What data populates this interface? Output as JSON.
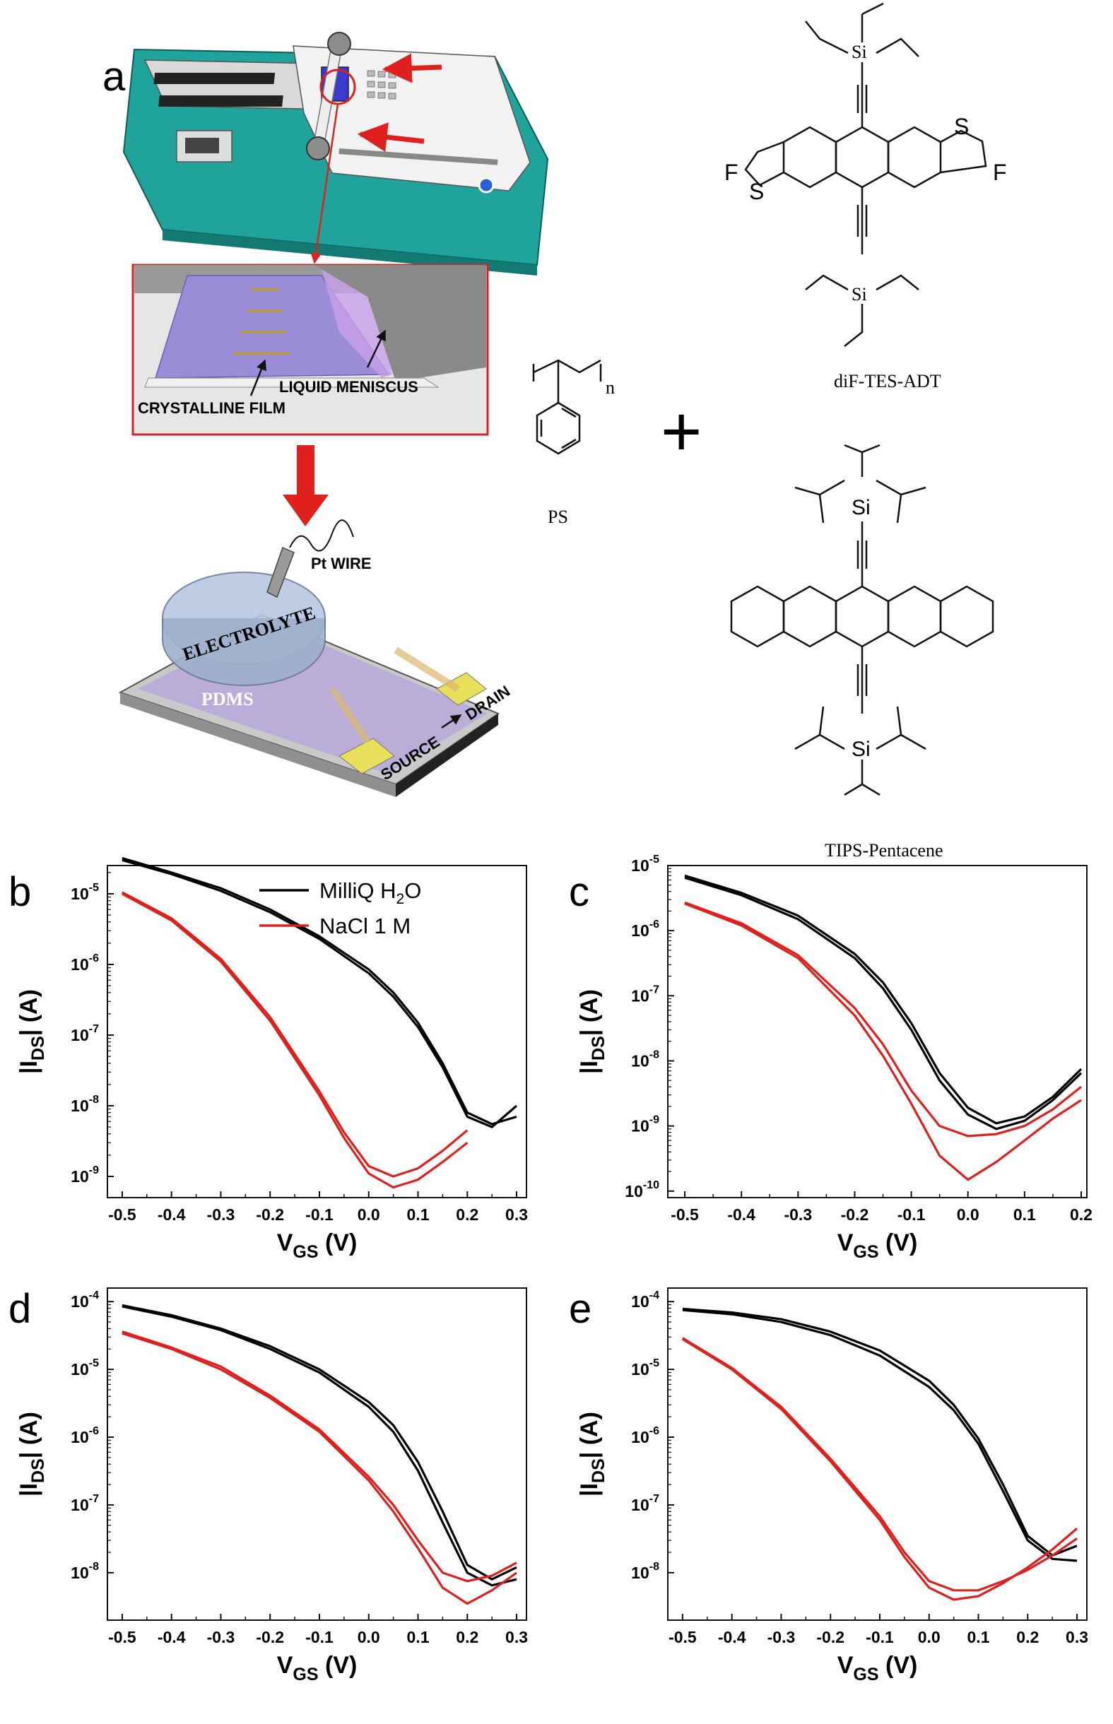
{
  "panel_letters": {
    "a": "a",
    "b": "b",
    "c": "c",
    "d": "d",
    "e": "e"
  },
  "illustration": {
    "labels": {
      "liquid_meniscus": "LIQUID MENISCUS",
      "crystalline_film": "CRYSTALLINE FILM",
      "pt_wire": "Pt WIRE",
      "electrolyte": "ELECTROLYTE",
      "pdms": "PDMS",
      "source": "SOURCE",
      "drain": "DRAIN"
    },
    "molecules": {
      "difTesAdt": "diF-TES-ADT",
      "tipsPentacene": "TIPS-Pentacene",
      "ps": "PS",
      "plus": "+",
      "si": "Si",
      "f": "F",
      "s": "S",
      "n": "n"
    }
  },
  "colors": {
    "water": "#000000",
    "nacl": "#e0201c",
    "teal": "#1fa39b",
    "film": "#9a8cd6",
    "gold": "#e8e05a"
  },
  "chart_data": [
    {
      "panel": "b",
      "type": "line",
      "yscale": "log",
      "xlabel": "V",
      "xlabel_sub": "GS",
      "xlabel_unit": " (V)",
      "ylabel_pre": "|I",
      "ylabel_sub": "DS",
      "ylabel_post": "| (A)",
      "xlim": [
        -0.53,
        0.32
      ],
      "ylim_exp": [
        -9.3,
        -4.6
      ],
      "xticks": [
        -0.5,
        -0.4,
        -0.3,
        -0.2,
        -0.1,
        0.0,
        0.1,
        0.2,
        0.3
      ],
      "xtick_labels": [
        "-0.5",
        "-0.4",
        "-0.3",
        "-0.2",
        "-0.1",
        "0.0",
        "0.1",
        "0.2",
        "0.3"
      ],
      "yticks_exp": [
        -9,
        -8,
        -7,
        -6,
        -5
      ],
      "ytick_labels": [
        {
          "base": "10",
          "exp": "-9"
        },
        {
          "base": "10",
          "exp": "-8"
        },
        {
          "base": "10",
          "exp": "-7"
        },
        {
          "base": "10",
          "exp": "-6"
        },
        {
          "base": "10",
          "exp": "-5"
        }
      ],
      "legend": [
        {
          "name": "MilliQ H",
          "sub": "2",
          "tail": "O",
          "color": "#000000"
        },
        {
          "name": "NaCl 1 M",
          "sub": "",
          "tail": "",
          "color": "#e0201c"
        }
      ],
      "series": [
        {
          "name": "MilliQ H2O",
          "color": "#000000",
          "x": [
            -0.5,
            -0.4,
            -0.3,
            -0.2,
            -0.1,
            0.0,
            0.05,
            0.1,
            0.15,
            0.2,
            0.25,
            0.3
          ],
          "y": [
            3e-05,
            1.9e-05,
            1.1e-05,
            5.5e-06,
            2.3e-06,
            7.5e-07,
            3.5e-07,
            1.3e-07,
            3.5e-08,
            7e-09,
            5e-09,
            1e-08
          ]
        },
        {
          "name": "MilliQ H2O",
          "color": "#000000",
          "x": [
            -0.5,
            -0.4,
            -0.3,
            -0.2,
            -0.1,
            0.0,
            0.05,
            0.1,
            0.15,
            0.2,
            0.25,
            0.3
          ],
          "y": [
            3.2e-05,
            2e-05,
            1.2e-05,
            6e-06,
            2.5e-06,
            8.5e-07,
            4e-07,
            1.5e-07,
            4e-08,
            8e-09,
            5.5e-09,
            7e-09
          ]
        },
        {
          "name": "NaCl 1 M",
          "color": "#e0201c",
          "x": [
            -0.5,
            -0.4,
            -0.3,
            -0.2,
            -0.1,
            -0.05,
            0.0,
            0.05,
            0.1,
            0.15,
            0.2
          ],
          "y": [
            1e-05,
            4.2e-06,
            1.1e-06,
            1.6e-07,
            1.4e-08,
            3.5e-09,
            1.1e-09,
            7e-10,
            9e-10,
            1.6e-09,
            3e-09
          ]
        },
        {
          "name": "NaCl 1 M",
          "color": "#e0201c",
          "x": [
            -0.5,
            -0.4,
            -0.3,
            -0.2,
            -0.1,
            -0.05,
            0.0,
            0.05,
            0.1,
            0.15,
            0.2
          ],
          "y": [
            1.05e-05,
            4.5e-06,
            1.2e-06,
            1.8e-07,
            1.6e-08,
            4.2e-09,
            1.4e-09,
            1e-09,
            1.3e-09,
            2.3e-09,
            4.5e-09
          ]
        }
      ]
    },
    {
      "panel": "c",
      "type": "line",
      "yscale": "log",
      "xlabel": "V",
      "xlabel_sub": "GS",
      "xlabel_unit": " (V)",
      "ylabel_pre": "|I",
      "ylabel_sub": "DS",
      "ylabel_post": "| (A)",
      "xlim": [
        -0.53,
        0.21
      ],
      "ylim_exp": [
        -10.1,
        -5.0
      ],
      "xticks": [
        -0.5,
        -0.4,
        -0.3,
        -0.2,
        -0.1,
        0.0,
        0.1,
        0.2
      ],
      "xtick_labels": [
        "-0.5",
        "-0.4",
        "-0.3",
        "-0.2",
        "-0.1",
        "0.0",
        "0.1",
        "0.2"
      ],
      "yticks_exp": [
        -10,
        -9,
        -8,
        -7,
        -6,
        -5
      ],
      "ytick_labels": [
        {
          "base": "10",
          "exp": "-10"
        },
        {
          "base": "10",
          "exp": "-9"
        },
        {
          "base": "10",
          "exp": "-8"
        },
        {
          "base": "10",
          "exp": "-7"
        },
        {
          "base": "10",
          "exp": "-6"
        },
        {
          "base": "10",
          "exp": "-5"
        }
      ],
      "legend": [],
      "series": [
        {
          "name": "MilliQ H2O",
          "color": "#000000",
          "x": [
            -0.5,
            -0.4,
            -0.3,
            -0.2,
            -0.15,
            -0.1,
            -0.05,
            0.0,
            0.05,
            0.1,
            0.15,
            0.2
          ],
          "y": [
            6.5e-06,
            3.5e-06,
            1.5e-06,
            3.8e-07,
            1.3e-07,
            3e-08,
            5e-09,
            1.5e-09,
            9e-10,
            1.2e-09,
            2.5e-09,
            6.5e-09
          ]
        },
        {
          "name": "MilliQ H2O",
          "color": "#000000",
          "x": [
            -0.5,
            -0.4,
            -0.3,
            -0.2,
            -0.15,
            -0.1,
            -0.05,
            0.0,
            0.05,
            0.1,
            0.15,
            0.2
          ],
          "y": [
            7e-06,
            3.8e-06,
            1.7e-06,
            4.4e-07,
            1.6e-07,
            3.8e-08,
            6.5e-09,
            1.9e-09,
            1.1e-09,
            1.4e-09,
            2.8e-09,
            7.5e-09
          ]
        },
        {
          "name": "NaCl 1 M",
          "color": "#e0201c",
          "x": [
            -0.5,
            -0.4,
            -0.3,
            -0.2,
            -0.15,
            -0.1,
            -0.05,
            0.0,
            0.05,
            0.1,
            0.15,
            0.2
          ],
          "y": [
            2.6e-06,
            1.2e-06,
            3.8e-07,
            5e-08,
            1.2e-08,
            2.2e-09,
            3.5e-10,
            1.5e-10,
            2.8e-10,
            6e-10,
            1.3e-09,
            2.5e-09
          ]
        },
        {
          "name": "NaCl 1 M",
          "color": "#e0201c",
          "x": [
            -0.5,
            -0.4,
            -0.3,
            -0.2,
            -0.15,
            -0.1,
            -0.05,
            0.0,
            0.05,
            0.1,
            0.15,
            0.2
          ],
          "y": [
            2.7e-06,
            1.3e-06,
            4.2e-07,
            6.5e-08,
            1.8e-08,
            3.5e-09,
            1e-09,
            7e-10,
            7.5e-10,
            1e-09,
            1.8e-09,
            4e-09
          ]
        }
      ]
    },
    {
      "panel": "d",
      "type": "line",
      "yscale": "log",
      "xlabel": "V",
      "xlabel_sub": "GS",
      "xlabel_unit": " (V)",
      "ylabel_pre": "|I",
      "ylabel_sub": "DS",
      "ylabel_post": "| (A)",
      "xlim": [
        -0.53,
        0.32
      ],
      "ylim_exp": [
        -8.7,
        -3.8
      ],
      "xticks": [
        -0.5,
        -0.4,
        -0.3,
        -0.2,
        -0.1,
        0.0,
        0.1,
        0.2,
        0.3
      ],
      "xtick_labels": [
        "-0.5",
        "-0.4",
        "-0.3",
        "-0.2",
        "-0.1",
        "0.0",
        "0.1",
        "0.2",
        "0.3"
      ],
      "yticks_exp": [
        -8,
        -7,
        -6,
        -5,
        -4
      ],
      "ytick_labels": [
        {
          "base": "10",
          "exp": "-8"
        },
        {
          "base": "10",
          "exp": "-7"
        },
        {
          "base": "10",
          "exp": "-6"
        },
        {
          "base": "10",
          "exp": "-5"
        },
        {
          "base": "10",
          "exp": "-4"
        }
      ],
      "legend": [],
      "series": [
        {
          "name": "MilliQ H2O",
          "color": "#000000",
          "x": [
            -0.5,
            -0.4,
            -0.3,
            -0.2,
            -0.1,
            0.0,
            0.05,
            0.1,
            0.15,
            0.2,
            0.25,
            0.3
          ],
          "y": [
            8.5e-05,
            6e-05,
            3.8e-05,
            2e-05,
            9e-06,
            2.8e-06,
            1.2e-06,
            3.2e-07,
            5.5e-08,
            1e-08,
            6.5e-09,
            8e-09
          ]
        },
        {
          "name": "MilliQ H2O",
          "color": "#000000",
          "x": [
            -0.5,
            -0.4,
            -0.3,
            -0.2,
            -0.1,
            0.0,
            0.05,
            0.1,
            0.15,
            0.2,
            0.25,
            0.3
          ],
          "y": [
            8.8e-05,
            6.3e-05,
            4e-05,
            2.2e-05,
            1e-05,
            3.3e-06,
            1.5e-06,
            4.3e-07,
            8e-08,
            1.3e-08,
            8e-09,
            1.2e-08
          ]
        },
        {
          "name": "NaCl 1 M",
          "color": "#e0201c",
          "x": [
            -0.5,
            -0.4,
            -0.3,
            -0.2,
            -0.1,
            0.0,
            0.05,
            0.1,
            0.15,
            0.2,
            0.25,
            0.3
          ],
          "y": [
            3.4e-05,
            2e-05,
            1e-05,
            3.8e-06,
            1.2e-06,
            2.3e-07,
            8e-08,
            2.3e-08,
            6e-09,
            3.5e-09,
            5.5e-09,
            1e-08
          ]
        },
        {
          "name": "NaCl 1 M",
          "color": "#e0201c",
          "x": [
            -0.5,
            -0.4,
            -0.3,
            -0.2,
            -0.1,
            0.0,
            0.05,
            0.1,
            0.15,
            0.2,
            0.25,
            0.3
          ],
          "y": [
            3.6e-05,
            2.1e-05,
            1.1e-05,
            4.1e-06,
            1.3e-06,
            2.6e-07,
            1e-07,
            3e-08,
            1e-08,
            7.5e-09,
            9e-09,
            1.4e-08
          ]
        }
      ]
    },
    {
      "panel": "e",
      "type": "line",
      "yscale": "log",
      "xlabel": "V",
      "xlabel_sub": "GS",
      "xlabel_unit": " (V)",
      "ylabel_pre": "|I",
      "ylabel_sub": "DS",
      "ylabel_post": "| (A)",
      "xlim": [
        -0.53,
        0.32
      ],
      "ylim_exp": [
        -8.7,
        -3.8
      ],
      "xticks": [
        -0.5,
        -0.4,
        -0.3,
        -0.2,
        -0.1,
        0.0,
        0.1,
        0.2,
        0.3
      ],
      "xtick_labels": [
        "-0.5",
        "-0.4",
        "-0.3",
        "-0.2",
        "-0.1",
        "0.0",
        "0.1",
        "0.2",
        "0.3"
      ],
      "yticks_exp": [
        -8,
        -7,
        -6,
        -5,
        -4
      ],
      "ytick_labels": [
        {
          "base": "10",
          "exp": "-8"
        },
        {
          "base": "10",
          "exp": "-7"
        },
        {
          "base": "10",
          "exp": "-6"
        },
        {
          "base": "10",
          "exp": "-5"
        },
        {
          "base": "10",
          "exp": "-4"
        }
      ],
      "legend": [],
      "series": [
        {
          "name": "MilliQ H2O",
          "color": "#000000",
          "x": [
            -0.5,
            -0.4,
            -0.3,
            -0.2,
            -0.1,
            0.0,
            0.05,
            0.1,
            0.15,
            0.2,
            0.25,
            0.3
          ],
          "y": [
            7.5e-05,
            6.5e-05,
            5e-05,
            3.2e-05,
            1.6e-05,
            5.5e-06,
            2.5e-06,
            8e-07,
            1.6e-07,
            3e-08,
            1.6e-08,
            1.5e-08
          ]
        },
        {
          "name": "MilliQ H2O",
          "color": "#000000",
          "x": [
            -0.5,
            -0.4,
            -0.3,
            -0.2,
            -0.1,
            0.0,
            0.05,
            0.1,
            0.15,
            0.2,
            0.25,
            0.3
          ],
          "y": [
            7.8e-05,
            6.9e-05,
            5.5e-05,
            3.6e-05,
            1.9e-05,
            6.8e-06,
            3e-06,
            9.5e-07,
            2e-07,
            3.5e-08,
            1.8e-08,
            2.5e-08
          ]
        },
        {
          "name": "NaCl 1 M",
          "color": "#e0201c",
          "x": [
            -0.5,
            -0.4,
            -0.3,
            -0.2,
            -0.1,
            -0.05,
            0.0,
            0.05,
            0.1,
            0.15,
            0.2,
            0.25,
            0.3
          ],
          "y": [
            2.8e-05,
            1e-05,
            2.6e-06,
            4.4e-07,
            6e-08,
            1.7e-08,
            6e-09,
            4e-09,
            4.5e-09,
            7e-09,
            1.2e-08,
            2.2e-08,
            4.5e-08
          ]
        },
        {
          "name": "NaCl 1 M",
          "color": "#e0201c",
          "x": [
            -0.5,
            -0.4,
            -0.3,
            -0.2,
            -0.1,
            -0.05,
            0.0,
            0.05,
            0.1,
            0.15,
            0.2,
            0.25,
            0.3
          ],
          "y": [
            2.9e-05,
            1.05e-05,
            2.8e-06,
            4.8e-07,
            6.8e-08,
            2e-08,
            7.5e-09,
            5.5e-09,
            5.5e-09,
            7.5e-09,
            1.1e-08,
            1.8e-08,
            3.2e-08
          ]
        }
      ]
    }
  ]
}
